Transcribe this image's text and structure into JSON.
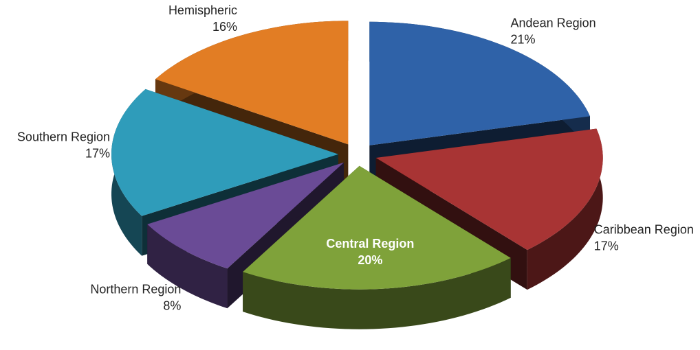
{
  "chart_data": {
    "type": "pie3d",
    "categories": [
      "Andean Region",
      "Caribbean Region",
      "Central Region",
      "Northern Region",
      "Southern Region",
      "Hemispheric"
    ],
    "values": [
      21,
      17,
      20,
      8,
      17,
      16
    ],
    "value_labels": [
      "21%",
      "17%",
      "20%",
      "8%",
      "17%",
      "16%"
    ],
    "colors": [
      "#2f62a8",
      "#a83434",
      "#7fa23a",
      "#6a4b96",
      "#2f9cba",
      "#e27d24"
    ]
  }
}
